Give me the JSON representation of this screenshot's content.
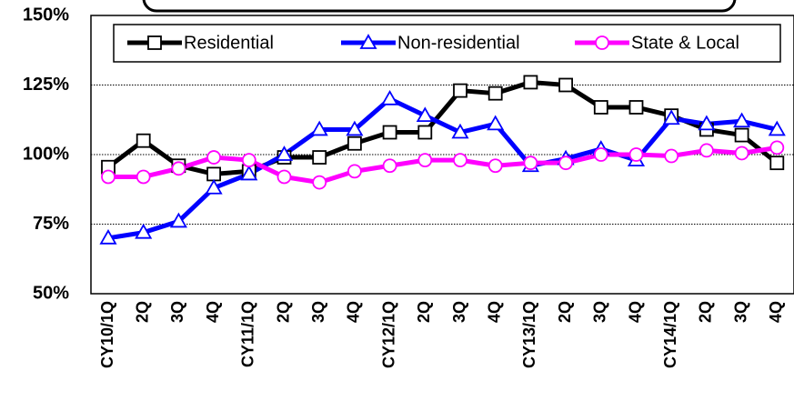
{
  "chart_data": {
    "type": "line",
    "categories": [
      "CY10/1Q",
      "2Q",
      "3Q",
      "4Q",
      "CY11/1Q",
      "2Q",
      "3Q",
      "4Q",
      "CY12/1Q",
      "2Q",
      "3Q",
      "4Q",
      "CY13/1Q",
      "2Q",
      "3Q",
      "4Q",
      "CY14/1Q",
      "2Q",
      "3Q",
      "4Q"
    ],
    "series": [
      {
        "name": "Residential",
        "color": "#000000",
        "marker": "square",
        "values": [
          95.5,
          105,
          96,
          93,
          94,
          99,
          99,
          104,
          108,
          108,
          123,
          122,
          126,
          125,
          117,
          117,
          114,
          109,
          107,
          97
        ]
      },
      {
        "name": "Non-residential",
        "color": "#0000ff",
        "marker": "triangle",
        "values": [
          70,
          72,
          76,
          88,
          93,
          100,
          109,
          109,
          120,
          114,
          108,
          111,
          96,
          98.5,
          102,
          98,
          113,
          111,
          112,
          109
        ]
      },
      {
        "name": "State & Local",
        "color": "#ff00ff",
        "marker": "circle",
        "values": [
          92,
          92,
          95,
          99,
          98,
          92,
          90,
          94,
          96,
          98,
          98,
          96,
          97,
          97,
          100,
          100,
          99.5,
          101.5,
          100.5,
          102.5
        ]
      }
    ],
    "ylim": [
      50,
      150
    ],
    "yticks": [
      {
        "value": 50,
        "label": "50%"
      },
      {
        "value": 75,
        "label": "75%"
      },
      {
        "value": 100,
        "label": "100%"
      },
      {
        "value": 125,
        "label": "125%"
      },
      {
        "value": 150,
        "label": "150%"
      }
    ],
    "grid": true,
    "legend": "top"
  }
}
